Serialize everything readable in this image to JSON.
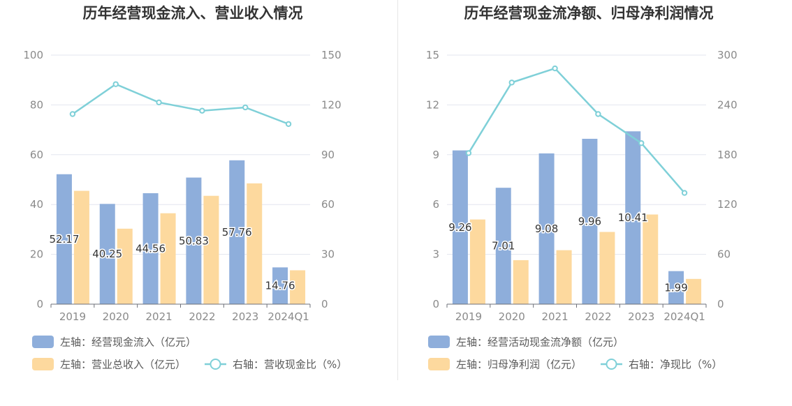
{
  "chart_data": [
    {
      "type": "bar",
      "title": "历年经营现金流入、营业收入情况",
      "categories": [
        "2019",
        "2020",
        "2021",
        "2022",
        "2023",
        "2024Q1"
      ],
      "left_axis": {
        "ylim": [
          0,
          100
        ],
        "ticks": [
          "0",
          "20",
          "40",
          "60",
          "80",
          "100"
        ]
      },
      "right_axis": {
        "ylim": [
          0,
          150
        ],
        "ticks": [
          "0",
          "30",
          "60",
          "90",
          "120",
          "150"
        ]
      },
      "series": [
        {
          "name": "左轴：经营现金流入（亿元）",
          "kind": "bar",
          "axis": "left",
          "color": "#8eaedb",
          "values": [
            52.17,
            40.25,
            44.56,
            50.83,
            57.76,
            14.76
          ],
          "labels": [
            "52.17",
            "40.25",
            "44.56",
            "50.83",
            "57.76",
            "14.76"
          ]
        },
        {
          "name": "左轴：营业总收入（亿元）",
          "kind": "bar",
          "axis": "left",
          "color": "#fdd99e",
          "values": [
            45.5,
            30.3,
            36.5,
            43.5,
            48.5,
            13.6
          ]
        },
        {
          "name": "右轴：营收现金比（%）",
          "kind": "line",
          "axis": "right",
          "color": "#7fd0d8",
          "values": [
            114.5,
            132.5,
            121.5,
            116.5,
            118.5,
            108.5
          ]
        }
      ]
    },
    {
      "type": "bar",
      "title": "历年经营现金流净额、归母净利润情况",
      "categories": [
        "2019",
        "2020",
        "2021",
        "2022",
        "2023",
        "2024Q1"
      ],
      "left_axis": {
        "ylim": [
          0,
          15
        ],
        "ticks": [
          "0",
          "3",
          "6",
          "9",
          "12",
          "15"
        ]
      },
      "right_axis": {
        "ylim": [
          0,
          300
        ],
        "ticks": [
          "0",
          "60",
          "120",
          "180",
          "240",
          "300"
        ]
      },
      "series": [
        {
          "name": "左轴：经营活动现金流净额（亿元）",
          "kind": "bar",
          "axis": "left",
          "color": "#8eaedb",
          "values": [
            9.26,
            7.01,
            9.08,
            9.96,
            10.41,
            1.99
          ],
          "labels": [
            "9.26",
            "7.01",
            "9.08",
            "9.96",
            "10.41",
            "1.99"
          ]
        },
        {
          "name": "左轴：归母净利润（亿元）",
          "kind": "bar",
          "axis": "left",
          "color": "#fdd99e",
          "values": [
            5.1,
            2.65,
            3.25,
            4.35,
            5.4,
            1.52
          ]
        },
        {
          "name": "右轴：净现比（%）",
          "kind": "line",
          "axis": "right",
          "color": "#7fd0d8",
          "values": [
            182,
            267,
            284,
            229,
            194,
            134
          ]
        }
      ]
    }
  ]
}
